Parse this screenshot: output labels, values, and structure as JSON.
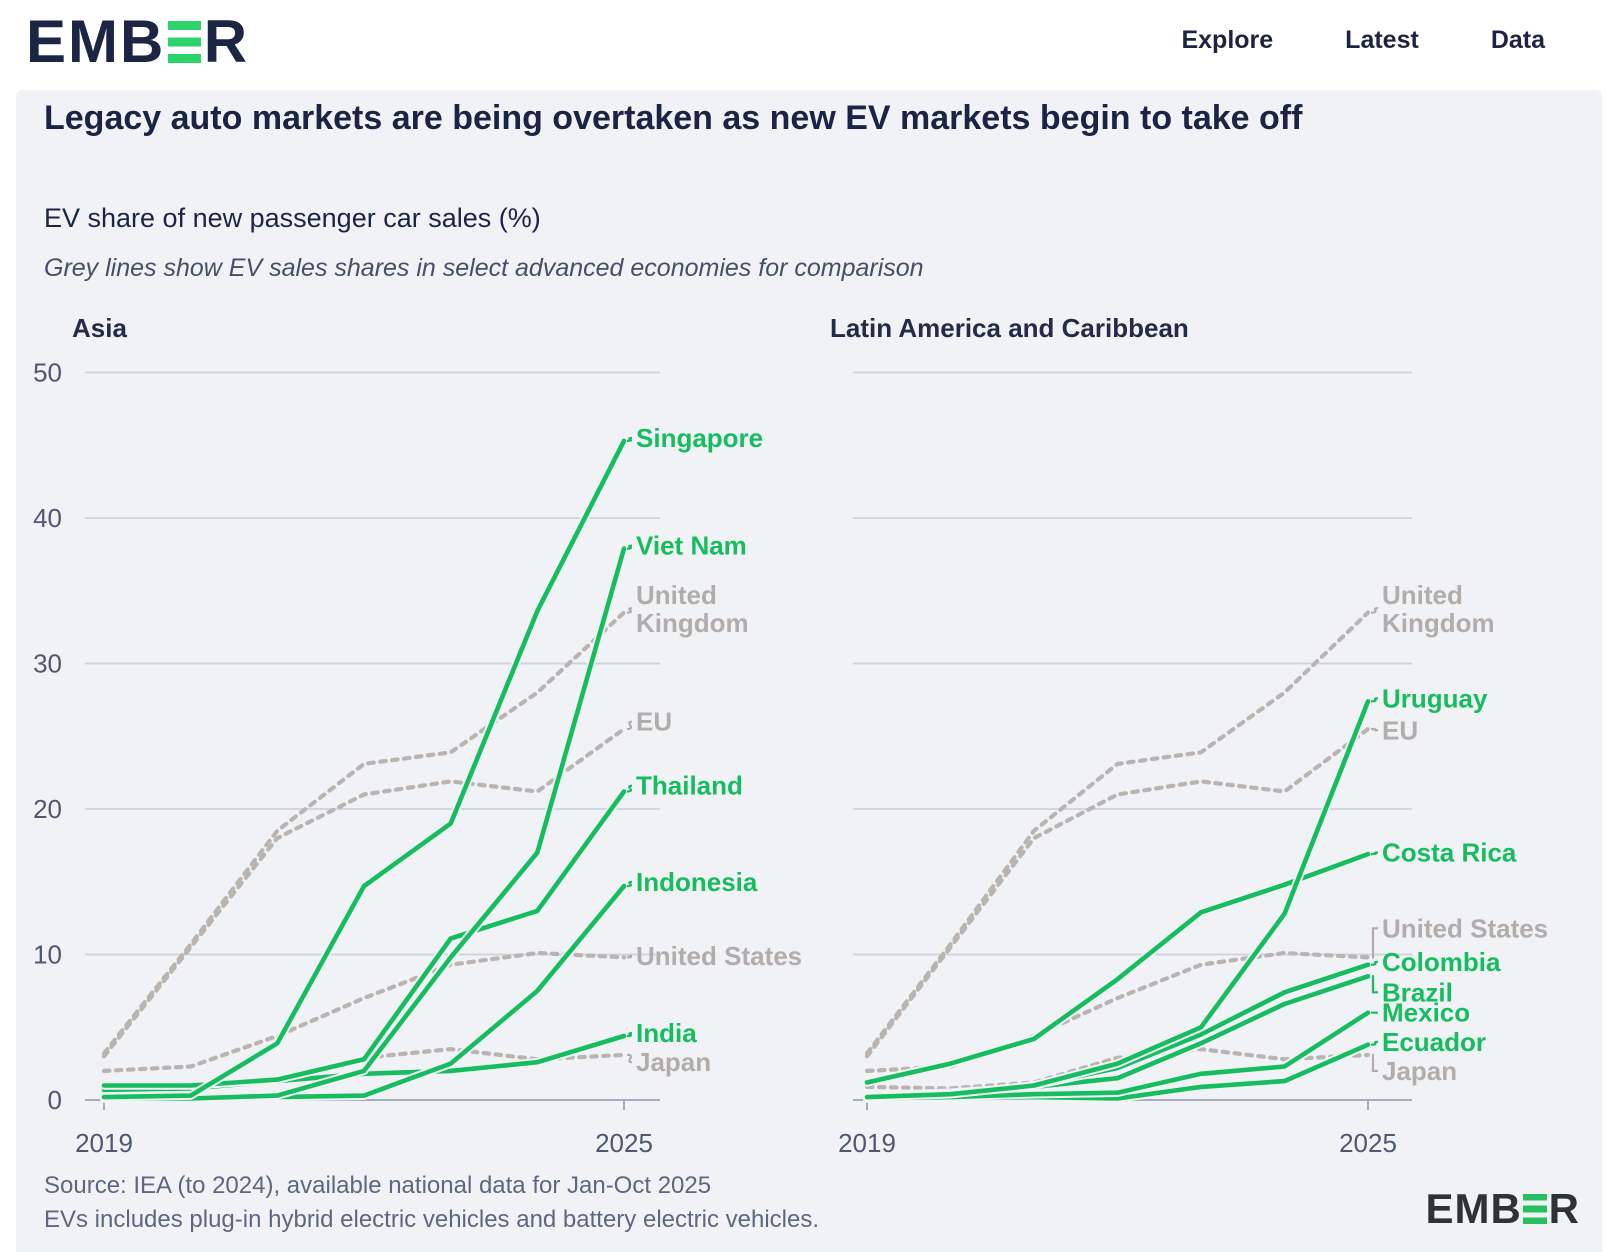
{
  "nav": {
    "brand_pre": "EMB",
    "brand_post": "R",
    "brand": "EMBER",
    "items": [
      "Explore",
      "Latest",
      "Data"
    ]
  },
  "header": {
    "title": "Legacy auto markets are being overtaken as new EV markets begin to take off",
    "subtitle": "EV share of new passenger car sales (%)",
    "note": "Grey lines show EV sales shares in select advanced economies for comparison"
  },
  "footer": {
    "source": "Source: IEA (to 2024), available national data for Jan-Oct 2025",
    "note": "EVs includes plug-in hybrid electric vehicles and battery electric vehicles."
  },
  "colors": {
    "green": "#16bd5f",
    "grey_line": "#bab4b1",
    "grey_label": "#b2acab",
    "navy": "#1c2444",
    "gridline": "#cdd2db",
    "axis": "#a5acba",
    "tick_text": "#4e5871",
    "panel_bg": "#f0f2f6",
    "logo_green": "#2bd46a"
  },
  "chart_data": [
    {
      "id": "asia",
      "type": "line",
      "title": "Asia",
      "x": [
        2019,
        2020,
        2021,
        2022,
        2023,
        2024,
        2025
      ],
      "x_tick_labels": [
        "2019",
        "2025"
      ],
      "ylim": [
        0,
        50
      ],
      "yticks": [
        0,
        10,
        20,
        30,
        40,
        50
      ],
      "grid": true,
      "legend": "end-labels",
      "series": [
        {
          "name": "Singapore",
          "style": "solid",
          "label": [
            "Singapore"
          ],
          "label_value": 45.5,
          "values": [
            0.2,
            0.3,
            3.9,
            14.7,
            19.0,
            33.6,
            45.3
          ]
        },
        {
          "name": "Viet Nam",
          "style": "solid",
          "label": [
            "Viet Nam"
          ],
          "label_value": 38.1,
          "values": [
            0.1,
            0.1,
            0.3,
            2.0,
            9.8,
            17.0,
            37.9
          ]
        },
        {
          "name": "United Kingdom",
          "style": "dashed",
          "label": [
            "United",
            "Kingdom"
          ],
          "label_value": 33.8,
          "values": [
            3.2,
            10.7,
            18.5,
            23.1,
            23.9,
            28.0,
            33.5
          ]
        },
        {
          "name": "EU",
          "style": "dashed",
          "label": [
            "EU"
          ],
          "label_value": 26.0,
          "values": [
            3.0,
            10.5,
            18.0,
            21.0,
            21.9,
            21.2,
            25.5
          ]
        },
        {
          "name": "Thailand",
          "style": "solid",
          "label": [
            "Thailand"
          ],
          "label_value": 21.6,
          "values": [
            1.0,
            1.0,
            1.4,
            2.8,
            11.1,
            13.0,
            21.2
          ]
        },
        {
          "name": "Indonesia",
          "style": "solid",
          "label": [
            "Indonesia"
          ],
          "label_value": 15.0,
          "values": [
            0.1,
            0.1,
            0.2,
            0.3,
            2.5,
            7.5,
            14.7
          ]
        },
        {
          "name": "United States",
          "style": "dashed",
          "label": [
            "United States"
          ],
          "label_value": 9.9,
          "values": [
            2.0,
            2.3,
            4.4,
            7.0,
            9.3,
            10.1,
            9.8
          ]
        },
        {
          "name": "India",
          "style": "solid",
          "label": [
            "India"
          ],
          "label_value": 4.6,
          "values": [
            0.7,
            0.8,
            1.3,
            1.8,
            2.0,
            2.6,
            4.4
          ]
        },
        {
          "name": "Japan",
          "style": "dashed",
          "label": [
            "Japan"
          ],
          "label_value": 2.6,
          "values": [
            0.9,
            0.8,
            1.2,
            2.9,
            3.5,
            2.8,
            3.1
          ]
        }
      ]
    },
    {
      "id": "latam",
      "type": "line",
      "title": "Latin America and Caribbean",
      "x": [
        2019,
        2020,
        2021,
        2022,
        2023,
        2024,
        2025
      ],
      "x_tick_labels": [
        "2019",
        "2025"
      ],
      "ylim": [
        0,
        50
      ],
      "yticks": [
        0,
        10,
        20,
        30,
        40,
        50
      ],
      "grid": true,
      "legend": "end-labels",
      "series": [
        {
          "name": "United Kingdom",
          "style": "dashed",
          "label": [
            "United",
            "Kingdom"
          ],
          "label_value": 33.8,
          "values": [
            3.2,
            10.7,
            18.5,
            23.1,
            23.9,
            28.0,
            33.5
          ]
        },
        {
          "name": "Uruguay",
          "style": "solid",
          "label": [
            "Uruguay"
          ],
          "label_value": 27.6,
          "values": [
            0.2,
            0.4,
            1.0,
            2.5,
            5.0,
            12.8,
            27.4
          ]
        },
        {
          "name": "EU",
          "style": "dashed",
          "label": [
            "EU"
          ],
          "label_value": 25.4,
          "values": [
            3.0,
            10.5,
            18.0,
            21.0,
            21.9,
            21.2,
            25.5
          ]
        },
        {
          "name": "Costa Rica",
          "style": "solid",
          "label": [
            "Costa Rica"
          ],
          "label_value": 17.0,
          "values": [
            1.2,
            2.5,
            4.2,
            8.3,
            12.9,
            14.8,
            16.9
          ]
        },
        {
          "name": "United States",
          "style": "dashed",
          "label": [
            "United States"
          ],
          "label_value": 11.8,
          "values": [
            2.0,
            2.3,
            4.4,
            7.0,
            9.3,
            10.1,
            9.8
          ]
        },
        {
          "name": "Colombia",
          "style": "solid",
          "label": [
            "Colombia"
          ],
          "label_value": 9.5,
          "values": [
            0.3,
            0.4,
            1.0,
            2.2,
            4.5,
            7.4,
            9.3
          ]
        },
        {
          "name": "Brazil",
          "style": "solid",
          "label": [
            "Brazil"
          ],
          "label_value": 7.4,
          "values": [
            0.3,
            0.5,
            0.9,
            1.5,
            3.9,
            6.6,
            8.5
          ]
        },
        {
          "name": "Mexico",
          "style": "solid",
          "label": [
            "Mexico"
          ],
          "label_value": 6.0,
          "values": [
            0.1,
            0.2,
            0.4,
            0.5,
            1.8,
            2.3,
            6.0
          ]
        },
        {
          "name": "Ecuador",
          "style": "solid",
          "label": [
            "Ecuador"
          ],
          "label_value": 4.0,
          "values": [
            0.1,
            0.1,
            0.2,
            0.1,
            0.9,
            1.3,
            3.8
          ]
        },
        {
          "name": "Japan",
          "style": "dashed",
          "label": [
            "Japan"
          ],
          "label_value": 2.0,
          "values": [
            0.9,
            0.8,
            1.2,
            2.9,
            3.5,
            2.8,
            3.1
          ]
        }
      ]
    }
  ]
}
